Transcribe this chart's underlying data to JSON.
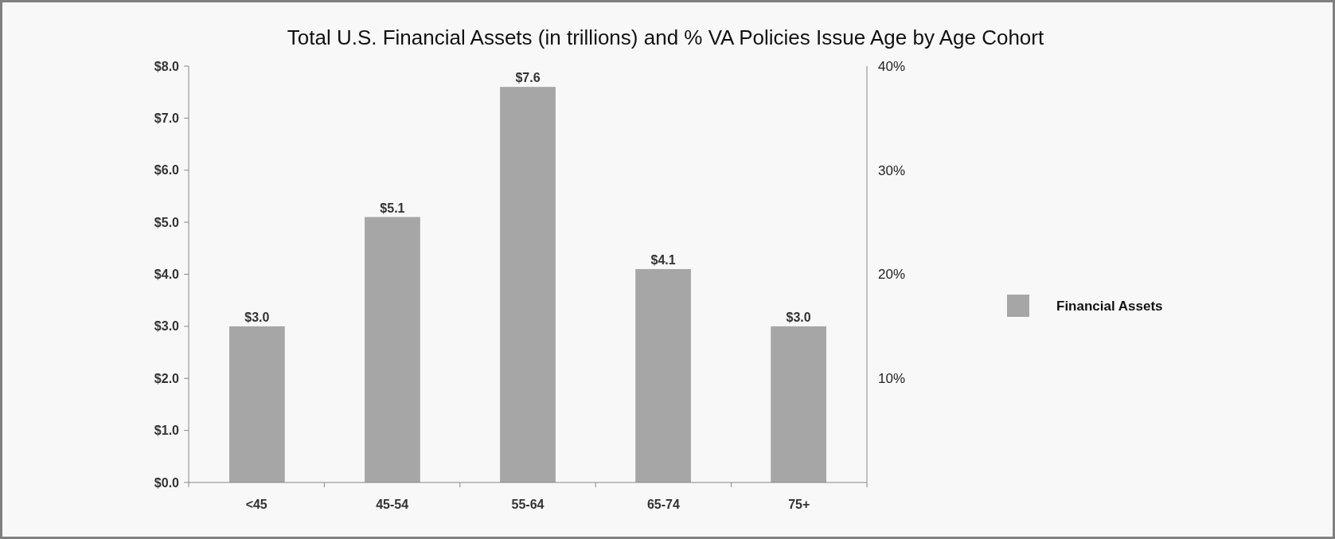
{
  "chart_data": {
    "type": "bar",
    "title": "Total U.S. Financial Assets (in trillions) and % VA Policies Issue Age by Age Cohort",
    "categories": [
      "<45",
      "45-54",
      "55-64",
      "65-74",
      "75+"
    ],
    "series": [
      {
        "name": "Financial Assets",
        "color": "#a6a6a6",
        "values": [
          3.0,
          5.1,
          7.6,
          4.1,
          3.0
        ],
        "value_labels": [
          "$3.0",
          "$5.1",
          "$7.6",
          "$4.1",
          "$3.0"
        ]
      }
    ],
    "ylim": [
      0,
      8
    ],
    "yticks": [
      {
        "value": 0,
        "label": "$0.0"
      },
      {
        "value": 1,
        "label": "$1.0"
      },
      {
        "value": 2,
        "label": "$2.0"
      },
      {
        "value": 3,
        "label": "$3.0"
      },
      {
        "value": 4,
        "label": "$4.0"
      },
      {
        "value": 5,
        "label": "$5.0"
      },
      {
        "value": 6,
        "label": "$6.0"
      },
      {
        "value": 7,
        "label": "$7.0"
      },
      {
        "value": 8,
        "label": "$8.0"
      }
    ],
    "y2lim": [
      0,
      40
    ],
    "y2ticks": [
      {
        "value": 10,
        "label": "10%"
      },
      {
        "value": 20,
        "label": "20%"
      },
      {
        "value": 30,
        "label": "30%"
      },
      {
        "value": 40,
        "label": "40%"
      }
    ],
    "legend": "right",
    "grid": false
  }
}
